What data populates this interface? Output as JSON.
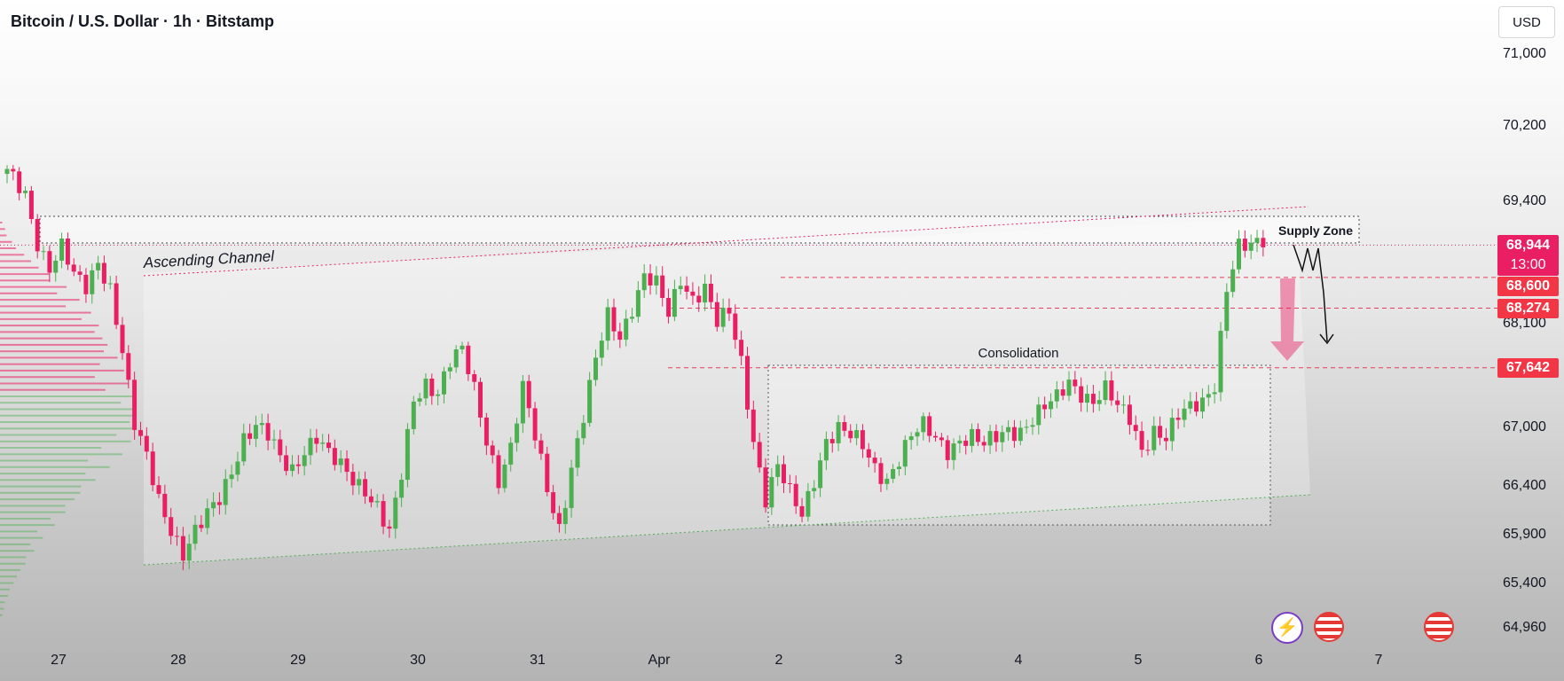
{
  "header": {
    "title": "Bitcoin / U.S. Dollar · 1h · Bitstamp",
    "currency": "USD"
  },
  "colors": {
    "up": "#4caf50",
    "down": "#e91e63",
    "level_line": "#e53e5a",
    "current_price": "#e91e63",
    "level_badge": "#f23645"
  },
  "chart_data": {
    "type": "candlestick",
    "symbol": "BTCUSD",
    "interval": "1h",
    "exchange": "Bitstamp",
    "ylim": [
      64700,
      71300
    ],
    "y_ticks": [
      "71,000",
      "70,200",
      "69,400",
      "68,100",
      "67,000",
      "66,400",
      "65,900",
      "65,400",
      "64,960"
    ],
    "y_tick_values": [
      71000,
      70200,
      69400,
      68100,
      67000,
      66400,
      65900,
      65400,
      64960
    ],
    "x_ticks": [
      "27",
      "28",
      "29",
      "30",
      "31",
      "Apr",
      "2",
      "3",
      "4",
      "5",
      "6",
      "7"
    ],
    "grid": false,
    "annotations": {
      "ascending_channel": "Ascending Channel",
      "consolidation": "Consolidation",
      "supply_zone": "Supply Zone"
    },
    "price_levels": [
      {
        "label": "68,944",
        "value": 68944,
        "kind": "current",
        "countdown": "13:00"
      },
      {
        "label": "68,600",
        "value": 68600,
        "kind": "level"
      },
      {
        "label": "68,274",
        "value": 68274,
        "kind": "level"
      },
      {
        "label": "67,642",
        "value": 67642,
        "kind": "level"
      }
    ],
    "price_path": [
      [
        0,
        69700
      ],
      [
        3,
        69500
      ],
      [
        5,
        69000
      ],
      [
        7,
        68700
      ],
      [
        9,
        68900
      ],
      [
        11,
        68600
      ],
      [
        13,
        68500
      ],
      [
        15,
        68800
      ],
      [
        17,
        68500
      ],
      [
        19,
        67800
      ],
      [
        21,
        67000
      ],
      [
        23,
        66700
      ],
      [
        25,
        66300
      ],
      [
        27,
        66000
      ],
      [
        29,
        65700
      ],
      [
        31,
        65900
      ],
      [
        33,
        66100
      ],
      [
        35,
        66300
      ],
      [
        37,
        66600
      ],
      [
        39,
        66900
      ],
      [
        41,
        67000
      ],
      [
        43,
        66900
      ],
      [
        45,
        66700
      ],
      [
        47,
        66600
      ],
      [
        49,
        66800
      ],
      [
        51,
        66900
      ],
      [
        53,
        66700
      ],
      [
        55,
        66600
      ],
      [
        57,
        66500
      ],
      [
        59,
        66400
      ],
      [
        61,
        66200
      ],
      [
        63,
        65900
      ],
      [
        65,
        66500
      ],
      [
        67,
        67300
      ],
      [
        69,
        67500
      ],
      [
        71,
        67400
      ],
      [
        73,
        67700
      ],
      [
        75,
        67800
      ],
      [
        77,
        67400
      ],
      [
        79,
        66900
      ],
      [
        81,
        66500
      ],
      [
        83,
        66800
      ],
      [
        85,
        67400
      ],
      [
        87,
        66900
      ],
      [
        89,
        66400
      ],
      [
        91,
        66000
      ],
      [
        93,
        66600
      ],
      [
        95,
        67100
      ],
      [
        97,
        67700
      ],
      [
        99,
        68200
      ],
      [
        101,
        68000
      ],
      [
        103,
        68300
      ],
      [
        105,
        68600
      ],
      [
        107,
        68500
      ],
      [
        109,
        68200
      ],
      [
        111,
        68600
      ],
      [
        113,
        68400
      ],
      [
        115,
        68500
      ],
      [
        117,
        68100
      ],
      [
        119,
        68200
      ],
      [
        121,
        67700
      ],
      [
        123,
        66900
      ],
      [
        125,
        66300
      ],
      [
        127,
        66600
      ],
      [
        129,
        66300
      ],
      [
        131,
        66100
      ],
      [
        133,
        66500
      ],
      [
        135,
        66900
      ],
      [
        137,
        67000
      ],
      [
        139,
        66900
      ],
      [
        141,
        66800
      ],
      [
        143,
        66600
      ],
      [
        145,
        66500
      ],
      [
        147,
        66700
      ],
      [
        149,
        66900
      ],
      [
        151,
        67000
      ],
      [
        153,
        66900
      ],
      [
        155,
        66800
      ],
      [
        157,
        66900
      ],
      [
        159,
        66900
      ],
      [
        161,
        66800
      ],
      [
        163,
        66900
      ],
      [
        165,
        67000
      ],
      [
        167,
        67000
      ],
      [
        169,
        67100
      ],
      [
        171,
        67200
      ],
      [
        173,
        67300
      ],
      [
        175,
        67500
      ],
      [
        177,
        67400
      ],
      [
        179,
        67300
      ],
      [
        181,
        67400
      ],
      [
        183,
        67200
      ],
      [
        185,
        67100
      ],
      [
        187,
        66800
      ],
      [
        189,
        67000
      ],
      [
        191,
        66900
      ],
      [
        193,
        67100
      ],
      [
        195,
        67200
      ],
      [
        197,
        67300
      ],
      [
        199,
        67500
      ],
      [
        201,
        68500
      ],
      [
        203,
        68900
      ],
      [
        205,
        68900
      ],
      [
        207,
        69000
      ],
      [
        208,
        68944
      ]
    ]
  }
}
